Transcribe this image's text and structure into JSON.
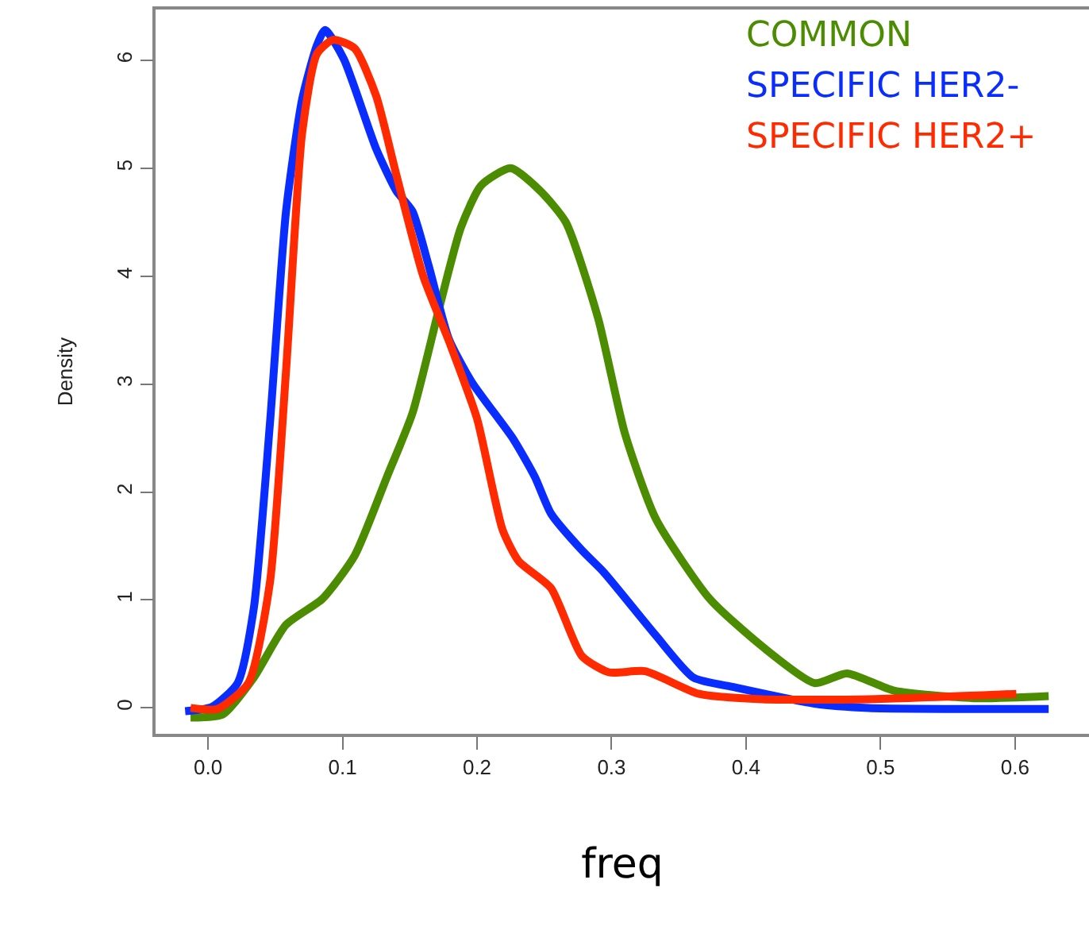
{
  "chart_data": {
    "type": "line",
    "xlabel": "freq",
    "ylabel": "Density",
    "xlim": [
      -0.039,
      0.655
    ],
    "ylim": [
      -0.24,
      6.47
    ],
    "xticks": [
      {
        "value": 0,
        "label": "0.0"
      },
      0.1,
      0.2,
      0.3,
      0.4,
      0.5,
      0.6
    ],
    "yticks": [
      0,
      1,
      2,
      3,
      4,
      5,
      6
    ],
    "grid": false,
    "legend": "top right",
    "line_style": "solid",
    "marker": "none",
    "series": [
      {
        "name": "COMMON",
        "color": "#4b8c00",
        "x": [
          -0.013,
          0.011,
          0.034,
          0.058,
          0.085,
          0.109,
          0.133,
          0.152,
          0.172,
          0.188,
          0.203,
          0.225,
          0.247,
          0.266,
          0.29,
          0.31,
          0.333,
          0.373,
          0.412,
          0.451,
          0.475,
          0.51,
          0.569,
          0.625
        ],
        "values": [
          -0.09,
          -0.06,
          0.28,
          0.77,
          1.01,
          1.41,
          2.14,
          2.73,
          3.71,
          4.45,
          4.84,
          5.0,
          4.79,
          4.5,
          3.61,
          2.54,
          1.75,
          1.01,
          0.57,
          0.23,
          0.32,
          0.16,
          0.09,
          0.11
        ]
      },
      {
        "name": "SPECIFIC HER2-",
        "color": "#0a2dff",
        "x": [
          -0.017,
          0.003,
          0.022,
          0.034,
          0.046,
          0.058,
          0.07,
          0.081,
          0.087,
          0.101,
          0.125,
          0.14,
          0.152,
          0.164,
          0.179,
          0.196,
          0.227,
          0.243,
          0.255,
          0.278,
          0.294,
          0.333,
          0.361,
          0.392,
          0.451,
          0.491,
          0.625
        ],
        "values": [
          -0.03,
          0.01,
          0.23,
          0.92,
          2.63,
          4.6,
          5.64,
          6.14,
          6.28,
          6.01,
          5.18,
          4.79,
          4.6,
          4.1,
          3.42,
          3.02,
          2.49,
          2.14,
          1.8,
          1.46,
          1.26,
          0.67,
          0.28,
          0.19,
          0.04,
          0,
          -0.01
        ]
      },
      {
        "name": "SPECIFIC HER2+",
        "color": "#ff2a00",
        "x": [
          -0.013,
          0.007,
          0.03,
          0.046,
          0.058,
          0.07,
          0.081,
          0.093,
          0.109,
          0.125,
          0.14,
          0.16,
          0.18,
          0.2,
          0.219,
          0.231,
          0.255,
          0.278,
          0.298,
          0.325,
          0.365,
          0.412,
          0.491,
          0.601
        ],
        "values": [
          0,
          -0.01,
          0.23,
          1.16,
          3.12,
          5.33,
          6.06,
          6.19,
          6.11,
          5.67,
          4.94,
          4.0,
          3.37,
          2.68,
          1.65,
          1.36,
          1.11,
          0.48,
          0.33,
          0.34,
          0.13,
          0.08,
          0.08,
          0.13
        ]
      }
    ]
  }
}
